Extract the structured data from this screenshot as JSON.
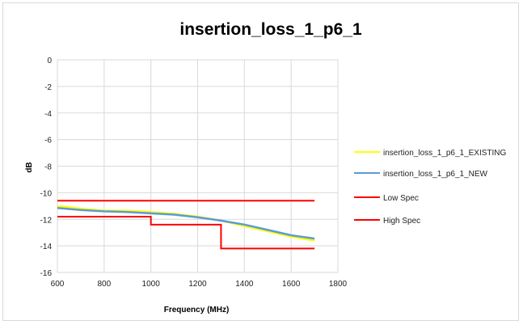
{
  "chart_data": {
    "type": "line",
    "title": "insertion_loss_1_p6_1",
    "xlabel": "Frequency (MHz)",
    "ylabel": "dB",
    "xlim": [
      600,
      1800
    ],
    "ylim": [
      -16,
      0
    ],
    "xticks": [
      600,
      800,
      1000,
      1200,
      1400,
      1600,
      1800
    ],
    "yticks": [
      0,
      -2,
      -4,
      -6,
      -8,
      -10,
      -12,
      -14,
      -16
    ],
    "xtick_labels": [
      "600",
      "800",
      "1000",
      "1200",
      "1400",
      "1600",
      "1800"
    ],
    "ytick_labels": [
      "0",
      "-2",
      "-4",
      "-6",
      "-8",
      "-10",
      "-12",
      "-14",
      "-16"
    ],
    "grid": "vertical",
    "legend_position": "right",
    "series": [
      {
        "name": "insertion_loss_1_p6_1_EXISTING",
        "color": "#ffff00",
        "x": [
          600,
          700,
          800,
          900,
          1000,
          1100,
          1200,
          1300,
          1400,
          1500,
          1600,
          1700
        ],
        "y": [
          -11.0,
          -11.2,
          -11.35,
          -11.35,
          -11.45,
          -11.6,
          -11.8,
          -12.1,
          -12.5,
          -12.9,
          -13.3,
          -13.6
        ]
      },
      {
        "name": "insertion_loss_1_p6_1_NEW",
        "color": "#5b9bd5",
        "x": [
          600,
          700,
          800,
          900,
          1000,
          1100,
          1200,
          1300,
          1400,
          1500,
          1600,
          1700
        ],
        "y": [
          -11.15,
          -11.3,
          -11.4,
          -11.45,
          -11.55,
          -11.65,
          -11.85,
          -12.1,
          -12.4,
          -12.8,
          -13.2,
          -13.45
        ]
      },
      {
        "name": "Low Spec",
        "color": "#ff0000",
        "x": [
          600,
          1700
        ],
        "y": [
          -10.6,
          -10.6
        ]
      },
      {
        "name": "High Spec",
        "color": "#ff0000",
        "x": [
          600,
          1000,
          1000,
          1300,
          1300,
          1700
        ],
        "y": [
          -11.8,
          -11.8,
          -12.4,
          -12.4,
          -14.2,
          -14.2
        ]
      }
    ]
  }
}
